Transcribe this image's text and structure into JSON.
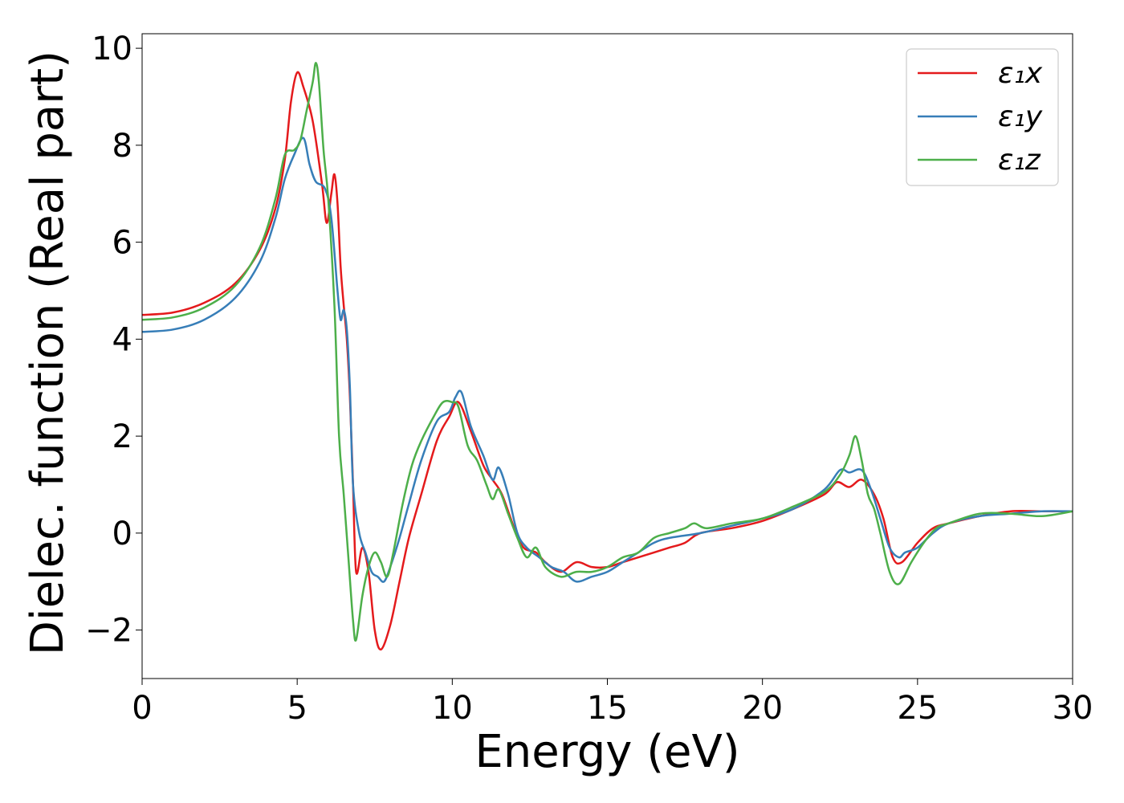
{
  "chart_data": {
    "type": "line",
    "title": "",
    "xlabel": "Energy (eV)",
    "ylabel": "Dielec. function (Real part)",
    "xlim": [
      0,
      30
    ],
    "ylim": [
      -3.0,
      10.3
    ],
    "xticks": [
      0,
      5,
      10,
      15,
      20,
      25,
      30
    ],
    "xtick_labels": [
      "0",
      "5",
      "10",
      "15",
      "20",
      "25",
      "30"
    ],
    "yticks": [
      -2,
      0,
      2,
      4,
      6,
      8,
      10
    ],
    "ytick_labels": [
      "−2",
      "0",
      "2",
      "4",
      "6",
      "8",
      "10"
    ],
    "grid": false,
    "legend_position": "top-right",
    "series": [
      {
        "name": "ε₁x",
        "color": "#e41a1c",
        "points": [
          [
            0,
            4.5
          ],
          [
            1,
            4.55
          ],
          [
            2,
            4.75
          ],
          [
            3,
            5.15
          ],
          [
            3.8,
            5.85
          ],
          [
            4.3,
            6.7
          ],
          [
            4.6,
            7.7
          ],
          [
            4.8,
            8.9
          ],
          [
            5.0,
            9.5
          ],
          [
            5.2,
            9.2
          ],
          [
            5.5,
            8.5
          ],
          [
            5.8,
            7.2
          ],
          [
            5.95,
            6.4
          ],
          [
            6.1,
            7.0
          ],
          [
            6.2,
            7.4
          ],
          [
            6.3,
            6.8
          ],
          [
            6.4,
            5.5
          ],
          [
            6.5,
            4.7
          ],
          [
            6.6,
            4.0
          ],
          [
            6.7,
            2.8
          ],
          [
            6.8,
            1.0
          ],
          [
            6.9,
            -0.8
          ],
          [
            7.1,
            -0.3
          ],
          [
            7.3,
            -0.8
          ],
          [
            7.5,
            -2.0
          ],
          [
            7.7,
            -2.4
          ],
          [
            8.0,
            -1.9
          ],
          [
            8.3,
            -1.0
          ],
          [
            8.6,
            -0.1
          ],
          [
            9.0,
            0.8
          ],
          [
            9.5,
            1.9
          ],
          [
            9.9,
            2.4
          ],
          [
            10.2,
            2.7
          ],
          [
            10.6,
            2.1
          ],
          [
            11.0,
            1.4
          ],
          [
            11.3,
            1.1
          ],
          [
            11.6,
            0.8
          ],
          [
            12.0,
            0.1
          ],
          [
            12.3,
            -0.3
          ],
          [
            12.7,
            -0.4
          ],
          [
            13.0,
            -0.6
          ],
          [
            13.5,
            -0.8
          ],
          [
            14.0,
            -0.6
          ],
          [
            14.5,
            -0.7
          ],
          [
            15.0,
            -0.7
          ],
          [
            15.5,
            -0.6
          ],
          [
            16.0,
            -0.5
          ],
          [
            16.5,
            -0.4
          ],
          [
            17.0,
            -0.3
          ],
          [
            17.5,
            -0.2
          ],
          [
            18.0,
            0.0
          ],
          [
            19.0,
            0.1
          ],
          [
            20.0,
            0.25
          ],
          [
            21.0,
            0.5
          ],
          [
            22.0,
            0.8
          ],
          [
            22.4,
            1.05
          ],
          [
            22.8,
            0.95
          ],
          [
            23.2,
            1.1
          ],
          [
            23.6,
            0.8
          ],
          [
            23.9,
            0.3
          ],
          [
            24.2,
            -0.5
          ],
          [
            24.5,
            -0.6
          ],
          [
            25.0,
            -0.2
          ],
          [
            25.5,
            0.1
          ],
          [
            26.0,
            0.2
          ],
          [
            27.0,
            0.35
          ],
          [
            28.0,
            0.45
          ],
          [
            29.0,
            0.45
          ],
          [
            30.0,
            0.45
          ]
        ]
      },
      {
        "name": "ε₁y",
        "color": "#377eb8",
        "points": [
          [
            0,
            4.15
          ],
          [
            1,
            4.2
          ],
          [
            2,
            4.4
          ],
          [
            3,
            4.85
          ],
          [
            3.8,
            5.6
          ],
          [
            4.3,
            6.5
          ],
          [
            4.6,
            7.3
          ],
          [
            4.9,
            7.8
          ],
          [
            5.2,
            8.15
          ],
          [
            5.4,
            7.6
          ],
          [
            5.6,
            7.25
          ],
          [
            5.9,
            7.1
          ],
          [
            6.1,
            6.5
          ],
          [
            6.3,
            5.0
          ],
          [
            6.4,
            4.4
          ],
          [
            6.5,
            4.6
          ],
          [
            6.6,
            4.2
          ],
          [
            6.7,
            3.0
          ],
          [
            6.8,
            1.0
          ],
          [
            7.0,
            0.0
          ],
          [
            7.2,
            -0.4
          ],
          [
            7.4,
            -0.8
          ],
          [
            7.6,
            -0.9
          ],
          [
            7.8,
            -1.0
          ],
          [
            8.0,
            -0.7
          ],
          [
            8.3,
            -0.1
          ],
          [
            8.6,
            0.6
          ],
          [
            9.0,
            1.5
          ],
          [
            9.5,
            2.3
          ],
          [
            9.9,
            2.5
          ],
          [
            10.1,
            2.8
          ],
          [
            10.3,
            2.9
          ],
          [
            10.6,
            2.2
          ],
          [
            11.0,
            1.6
          ],
          [
            11.3,
            1.1
          ],
          [
            11.5,
            1.35
          ],
          [
            11.8,
            0.8
          ],
          [
            12.1,
            0.0
          ],
          [
            12.4,
            -0.3
          ],
          [
            12.8,
            -0.5
          ],
          [
            13.2,
            -0.7
          ],
          [
            13.6,
            -0.8
          ],
          [
            14.0,
            -1.0
          ],
          [
            14.5,
            -0.9
          ],
          [
            15.0,
            -0.8
          ],
          [
            15.5,
            -0.6
          ],
          [
            16.0,
            -0.4
          ],
          [
            16.5,
            -0.2
          ],
          [
            17.0,
            -0.1
          ],
          [
            18.0,
            0.0
          ],
          [
            19.0,
            0.15
          ],
          [
            20.0,
            0.3
          ],
          [
            21.0,
            0.5
          ],
          [
            22.0,
            0.9
          ],
          [
            22.5,
            1.3
          ],
          [
            22.8,
            1.25
          ],
          [
            23.2,
            1.3
          ],
          [
            23.5,
            0.9
          ],
          [
            23.8,
            0.3
          ],
          [
            24.1,
            -0.3
          ],
          [
            24.4,
            -0.5
          ],
          [
            24.6,
            -0.4
          ],
          [
            25.0,
            -0.3
          ],
          [
            25.5,
            0.0
          ],
          [
            26.0,
            0.2
          ],
          [
            27.0,
            0.35
          ],
          [
            28.0,
            0.4
          ],
          [
            29.0,
            0.45
          ],
          [
            30.0,
            0.45
          ]
        ]
      },
      {
        "name": "ε₁z",
        "color": "#4daf4a",
        "points": [
          [
            0,
            4.4
          ],
          [
            1,
            4.45
          ],
          [
            2,
            4.65
          ],
          [
            3,
            5.1
          ],
          [
            3.8,
            5.9
          ],
          [
            4.3,
            6.9
          ],
          [
            4.6,
            7.8
          ],
          [
            4.9,
            7.9
          ],
          [
            5.1,
            8.1
          ],
          [
            5.3,
            8.7
          ],
          [
            5.5,
            9.3
          ],
          [
            5.6,
            9.7
          ],
          [
            5.7,
            9.3
          ],
          [
            5.85,
            7.9
          ],
          [
            6.0,
            6.9
          ],
          [
            6.2,
            4.7
          ],
          [
            6.35,
            2.0
          ],
          [
            6.5,
            0.8
          ],
          [
            6.65,
            -0.5
          ],
          [
            6.8,
            -1.8
          ],
          [
            6.9,
            -2.2
          ],
          [
            7.1,
            -1.3
          ],
          [
            7.3,
            -0.7
          ],
          [
            7.5,
            -0.4
          ],
          [
            7.7,
            -0.6
          ],
          [
            7.9,
            -0.9
          ],
          [
            8.1,
            -0.4
          ],
          [
            8.4,
            0.6
          ],
          [
            8.7,
            1.4
          ],
          [
            9.0,
            1.9
          ],
          [
            9.4,
            2.4
          ],
          [
            9.7,
            2.7
          ],
          [
            10.0,
            2.7
          ],
          [
            10.2,
            2.6
          ],
          [
            10.5,
            1.8
          ],
          [
            10.8,
            1.5
          ],
          [
            11.1,
            1.0
          ],
          [
            11.3,
            0.7
          ],
          [
            11.5,
            0.9
          ],
          [
            11.8,
            0.4
          ],
          [
            12.1,
            -0.1
          ],
          [
            12.4,
            -0.5
          ],
          [
            12.7,
            -0.3
          ],
          [
            13.0,
            -0.7
          ],
          [
            13.5,
            -0.9
          ],
          [
            14.0,
            -0.8
          ],
          [
            14.5,
            -0.8
          ],
          [
            15.0,
            -0.7
          ],
          [
            15.5,
            -0.5
          ],
          [
            16.0,
            -0.4
          ],
          [
            16.5,
            -0.1
          ],
          [
            17.0,
            0.0
          ],
          [
            17.5,
            0.1
          ],
          [
            17.8,
            0.2
          ],
          [
            18.2,
            0.1
          ],
          [
            19.0,
            0.2
          ],
          [
            20.0,
            0.3
          ],
          [
            21.0,
            0.55
          ],
          [
            22.0,
            0.85
          ],
          [
            22.5,
            1.2
          ],
          [
            22.8,
            1.6
          ],
          [
            23.0,
            2.0
          ],
          [
            23.2,
            1.5
          ],
          [
            23.4,
            0.8
          ],
          [
            23.6,
            0.5
          ],
          [
            23.8,
            0.0
          ],
          [
            24.1,
            -0.8
          ],
          [
            24.4,
            -1.05
          ],
          [
            24.8,
            -0.6
          ],
          [
            25.2,
            -0.2
          ],
          [
            25.6,
            0.1
          ],
          [
            26.0,
            0.2
          ],
          [
            27.0,
            0.4
          ],
          [
            28.0,
            0.4
          ],
          [
            29.0,
            0.35
          ],
          [
            30.0,
            0.45
          ]
        ]
      }
    ]
  }
}
